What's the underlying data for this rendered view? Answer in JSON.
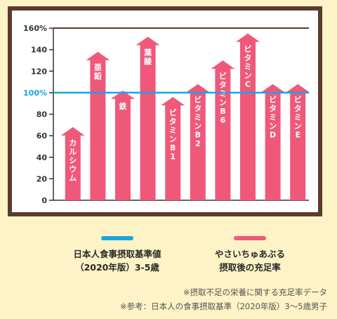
{
  "chart_data": {
    "type": "bar",
    "categories": [
      "カルシウム",
      "亜鉛",
      "鉄",
      "葉酸",
      "ビタミンB1",
      "ビタミンB2",
      "ビタミンB6",
      "ビタミンC",
      "ビタミンD",
      "ビタミンE"
    ],
    "values": [
      68,
      138,
      102,
      152,
      96,
      108,
      130,
      155,
      108,
      108
    ],
    "yticks": [
      "0",
      "20",
      "40",
      "60",
      "80",
      "100%",
      "120",
      "140",
      "160%"
    ],
    "ylim": [
      0,
      160
    ],
    "reference_line": {
      "value": 100,
      "color": "#1aa6e0"
    },
    "bar_color": "#f0587a",
    "grid": false
  },
  "legend": [
    {
      "label": "日本人食事摂取基準値\n（2020年版）3-5歳",
      "color": "#1aa6e0"
    },
    {
      "label": "やさいちゅあぶる\n摂取後の充足率",
      "color": "#f0587a"
    }
  ],
  "notes": [
    "※摂取不足の栄養に関する充足率データ",
    "※参考：日本人の食事摂取基準（2020年版）3〜5歳男子"
  ]
}
